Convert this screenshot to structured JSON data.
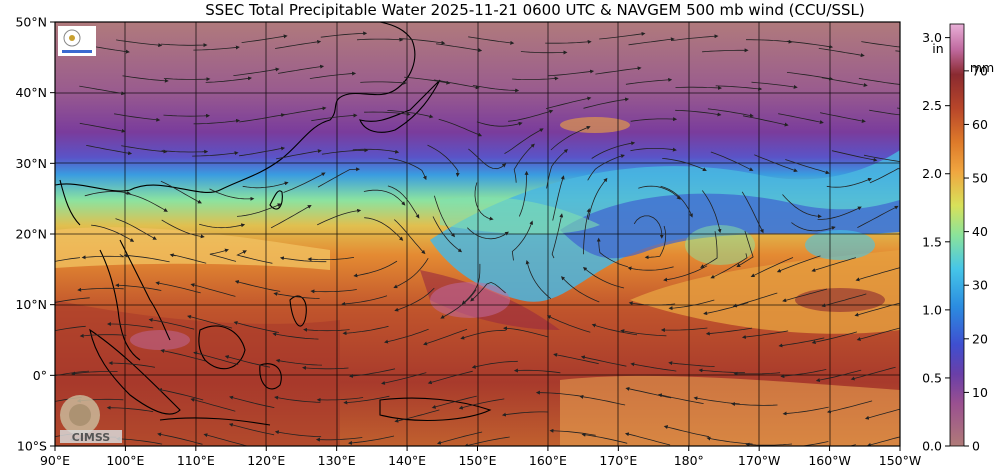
{
  "title": "SSEC Total Precipitable Water  2025-11-21 0600 UTC & NAVGEM 500 mb wind (CCU/SSL)",
  "logo_text": "CIMSS",
  "lat_labels": [
    "50°N",
    "40°N",
    "30°N",
    "20°N",
    "10°N",
    "0°",
    "10°S"
  ],
  "lon_labels": [
    "90°E",
    "100°E",
    "110°E",
    "120°E",
    "130°E",
    "140°E",
    "150°E",
    "160°E",
    "170°E",
    "180°",
    "170°W",
    "160°W",
    "150°W"
  ],
  "colorbar": {
    "inch_unit": "in",
    "mm_unit": "mm",
    "inch_ticks": [
      "3.0",
      "2.5",
      "2.0",
      "1.5",
      "1.0",
      "0.5",
      "0.0"
    ],
    "mm_ticks": [
      "70",
      "60",
      "50",
      "40",
      "30",
      "20",
      "10",
      "0"
    ],
    "colors": [
      "#b07a78",
      "#8b3a8c",
      "#6a3fa8",
      "#3f4fd0",
      "#2b8ce0",
      "#46c6e8",
      "#8be39a",
      "#d8e15a",
      "#f0a640",
      "#de7a2a",
      "#b8462a",
      "#8a2a30",
      "#c06aa0",
      "#e9b0d8"
    ]
  }
}
